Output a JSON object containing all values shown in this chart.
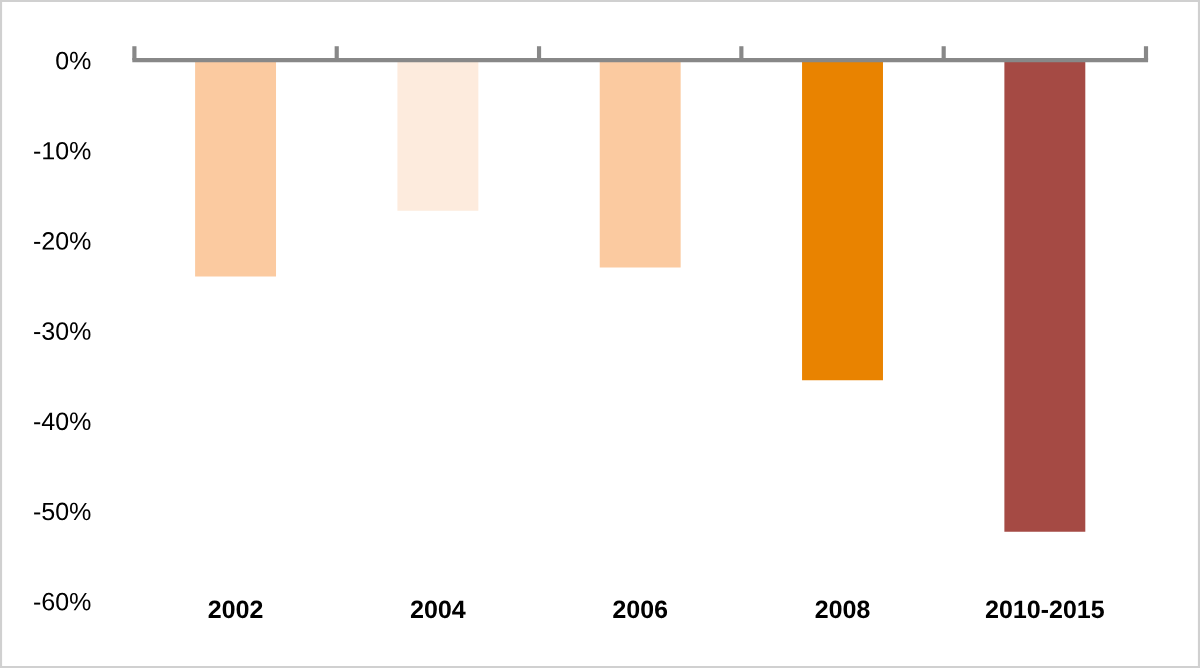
{
  "chart_data": {
    "type": "bar",
    "categories": [
      "2002",
      "2004",
      "2006",
      "2008",
      "2010-2015"
    ],
    "values": [
      -24.0,
      -16.7,
      -23.0,
      -35.5,
      -52.3
    ],
    "colors": [
      "#fbcaa0",
      "#fdebdd",
      "#fbcaa0",
      "#e98300",
      "#a54a44"
    ],
    "ylim": [
      -60,
      0
    ],
    "yticks": [
      {
        "value": 0,
        "label": "0%"
      },
      {
        "value": -10,
        "label": "-10%"
      },
      {
        "value": -20,
        "label": "-20%"
      },
      {
        "value": -30,
        "label": "-30%"
      },
      {
        "value": -40,
        "label": "-40%"
      },
      {
        "value": -50,
        "label": "-50%"
      },
      {
        "value": -60,
        "label": "-60%"
      }
    ],
    "grid": false,
    "legend": false
  }
}
